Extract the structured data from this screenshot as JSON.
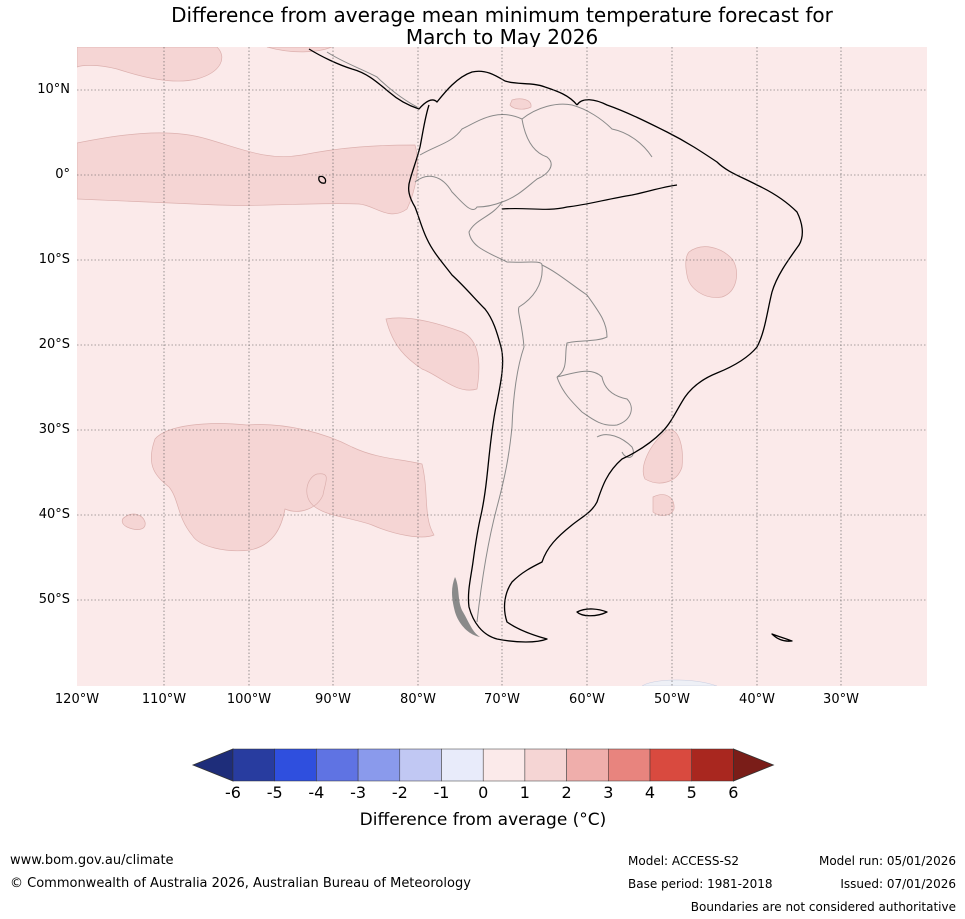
{
  "title": {
    "line1": "Difference from average mean minimum temperature forecast for",
    "line2": "March to May 2026"
  },
  "map": {
    "background_color": "#fbeaea",
    "anomaly_patch_color": "#f5d5d4",
    "latitude_labels": [
      "10°N",
      "0°",
      "10°S",
      "20°S",
      "30°S",
      "40°S",
      "50°S"
    ],
    "longitude_labels": [
      "120°W",
      "110°W",
      "100°W",
      "90°W",
      "80°W",
      "70°W",
      "60°W",
      "50°W",
      "40°W",
      "30°W"
    ]
  },
  "colorbar": {
    "ticks": [
      "-6",
      "-5",
      "-4",
      "-3",
      "-2",
      "-1",
      "0",
      "1",
      "2",
      "3",
      "4",
      "5",
      "6"
    ],
    "colors": [
      "#283c9f",
      "#2f4fde",
      "#5f73e3",
      "#8a9aec",
      "#c1c8f3",
      "#e8ebfa",
      "#fbeaea",
      "#f5d5d4",
      "#efaeab",
      "#e8847e",
      "#d94a3f",
      "#a9271f"
    ],
    "extend_low_color": "#1e2d7a",
    "extend_high_color": "#7a1d18",
    "label": "Difference from average (°C)"
  },
  "footer": {
    "website": "www.bom.gov.au/climate",
    "copyright": "© Commonwealth of Australia 2026, Australian Bureau of Meteorology",
    "model": "Model: ACCESS-S2",
    "base_period": "Base period: 1981-2018",
    "model_run": "Model run: 05/01/2026",
    "issued": "Issued: 07/01/2026",
    "disclaimer": "Boundaries are not considered authoritative"
  }
}
